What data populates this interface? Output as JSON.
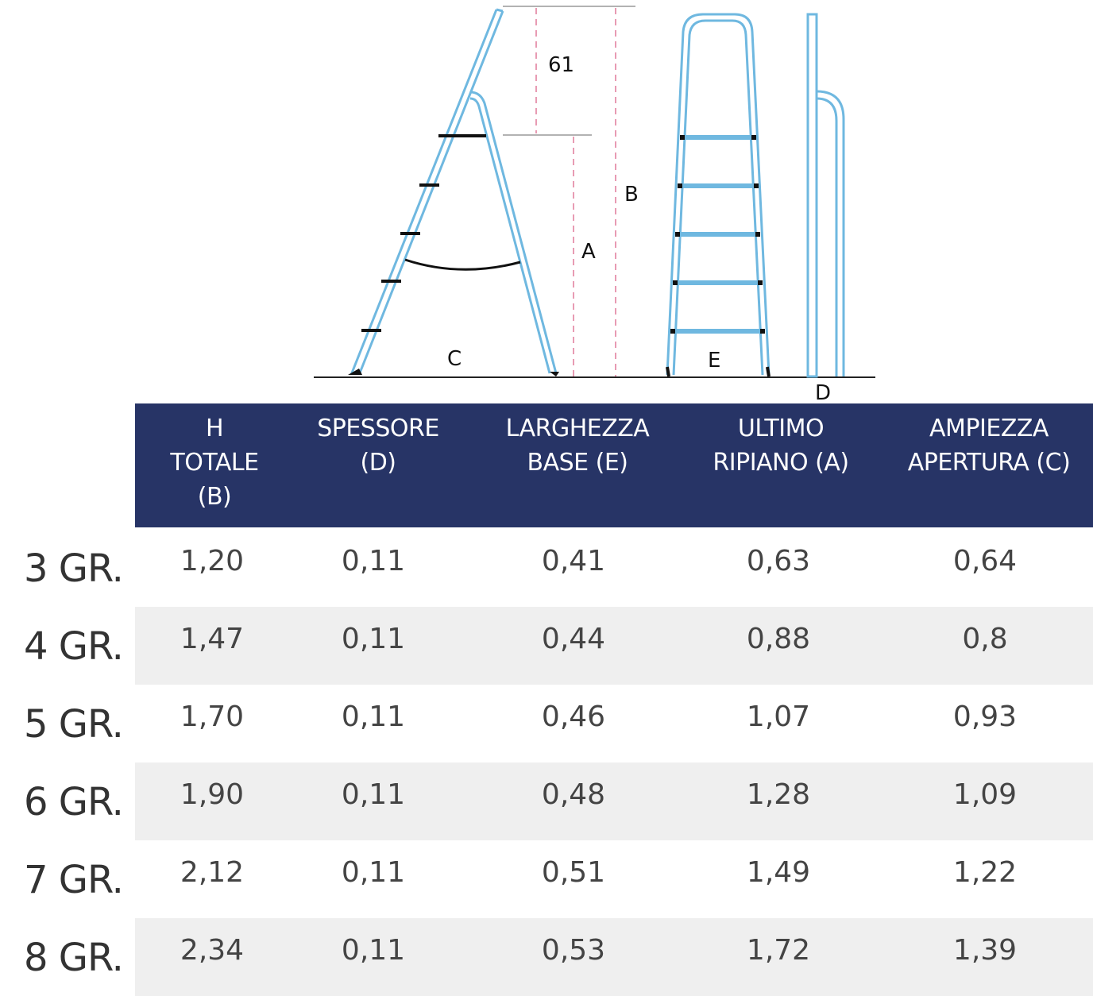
{
  "diagram": {
    "labels": {
      "top_gap": "61",
      "total_height": "B",
      "platform_height": "A",
      "opening": "C",
      "base_width": "E",
      "depth": "D"
    }
  },
  "table": {
    "headers": [
      "H\nTOTALE\n(B)",
      "SPESSORE\n(D)",
      "LARGHEZZA\nBASE (E)",
      "ULTIMO\nRIPIANO (A)",
      "AMPIEZZA\nAPERTURA (C)"
    ],
    "rows": [
      {
        "label": "3 GR.",
        "values": [
          "1,20",
          "0,11",
          "0,41",
          "0,63",
          "0,64"
        ]
      },
      {
        "label": "4 GR.",
        "values": [
          "1,47",
          "0,11",
          "0,44",
          "0,88",
          "0,8"
        ]
      },
      {
        "label": "5 GR.",
        "values": [
          "1,70",
          "0,11",
          "0,46",
          "1,07",
          "0,93"
        ]
      },
      {
        "label": "6 GR.",
        "values": [
          "1,90",
          "0,11",
          "0,48",
          "1,28",
          "1,09"
        ]
      },
      {
        "label": "7 GR.",
        "values": [
          "2,12",
          "0,11",
          "0,51",
          "1,49",
          "1,22"
        ]
      },
      {
        "label": "8 GR.",
        "values": [
          "2,34",
          "0,11",
          "0,53",
          "1,72",
          "1,39"
        ]
      }
    ]
  }
}
